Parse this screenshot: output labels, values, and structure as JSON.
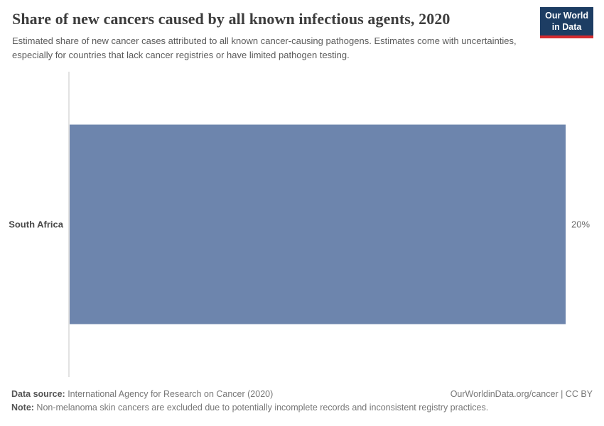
{
  "header": {
    "title": "Share of new cancers caused by all known infectious agents, 2020",
    "subtitle": "Estimated share of new cancer cases attributed to all known cancer-causing pathogens. Estimates come with uncertainties, especially for countries that lack cancer registries or have limited pathogen testing.",
    "logo": {
      "line1": "Our World",
      "line2": "in Data"
    }
  },
  "chart_data": {
    "type": "bar",
    "orientation": "horizontal",
    "title": "Share of new cancers caused by all known infectious agents, 2020",
    "categories": [
      "South Africa"
    ],
    "values": [
      20
    ],
    "value_labels": [
      "20%"
    ],
    "xlabel": "",
    "ylabel": "",
    "xlim": [
      0,
      20
    ],
    "grid": false,
    "legend": false,
    "bar_color": "#6d85ad"
  },
  "footer": {
    "datasource_label": "Data source:",
    "datasource_text": " International Agency for Research on Cancer (2020)",
    "link_text": "OurWorldinData.org/cancer | CC BY",
    "note_label": "Note:",
    "note_text": " Non-melanoma skin cancers are excluded due to potentially incomplete records and inconsistent registry practices."
  },
  "colors": {
    "bar": "#6d85ad",
    "logo_bg": "#1d3d63",
    "logo_underline": "#d42b2f",
    "axis_line": "#e2e2e2"
  }
}
